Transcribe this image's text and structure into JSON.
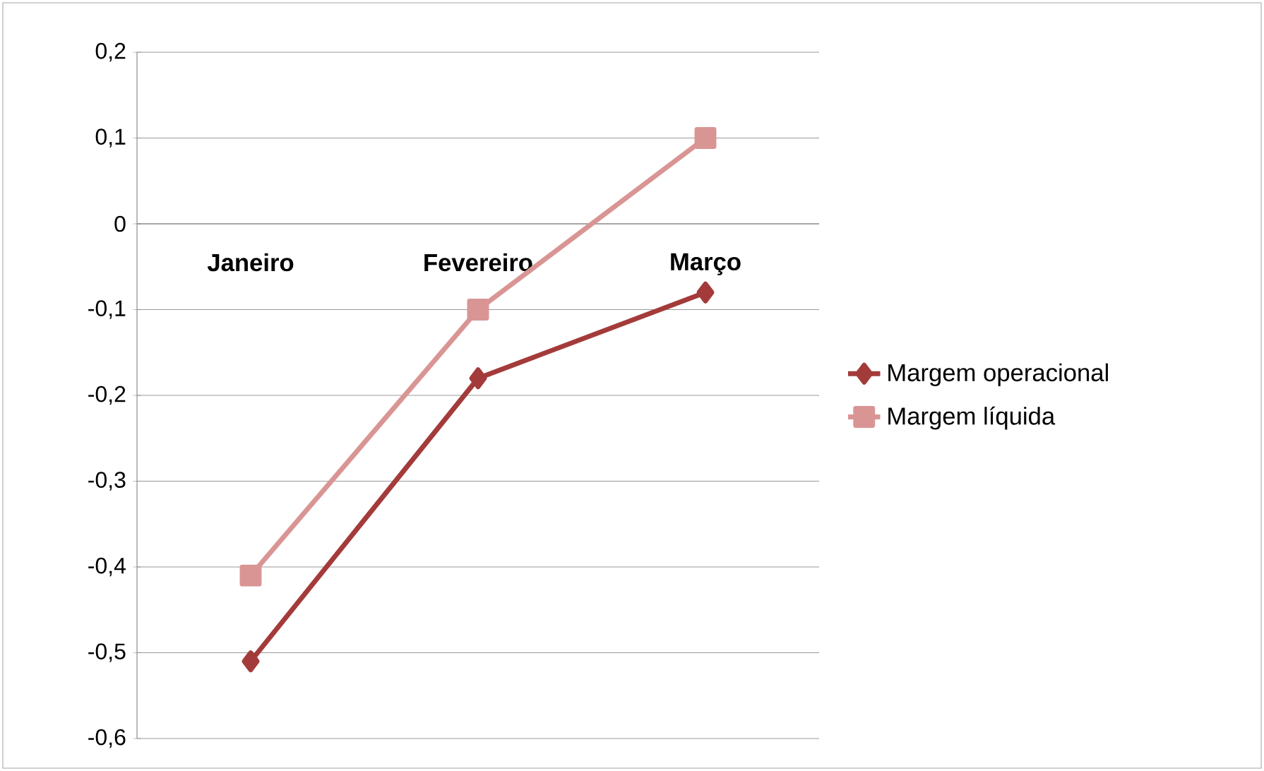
{
  "chart_data": {
    "type": "line",
    "categories": [
      "Janeiro",
      "Fevereiro",
      "Março"
    ],
    "series": [
      {
        "name": "Margem operacional",
        "color": "#a33b3a",
        "marker": "diamond",
        "values": [
          -0.51,
          -0.18,
          -0.08
        ]
      },
      {
        "name": "Margem líquida",
        "color": "#d99594",
        "marker": "square",
        "values": [
          -0.41,
          -0.1,
          0.1
        ]
      }
    ],
    "ylim": [
      -0.6,
      0.2
    ],
    "yticks": [
      {
        "value": -0.6,
        "label": "-0,6"
      },
      {
        "value": -0.5,
        "label": "-0,5"
      },
      {
        "value": -0.4,
        "label": "-0,4"
      },
      {
        "value": -0.3,
        "label": "-0,3"
      },
      {
        "value": -0.2,
        "label": "-0,2"
      },
      {
        "value": -0.1,
        "label": "-0,1"
      },
      0,
      {
        "value": 0.1,
        "label": "0,1"
      },
      {
        "value": 0.2,
        "label": "0,2"
      }
    ],
    "grid": "y",
    "legend": "right",
    "line_style": "solid"
  }
}
